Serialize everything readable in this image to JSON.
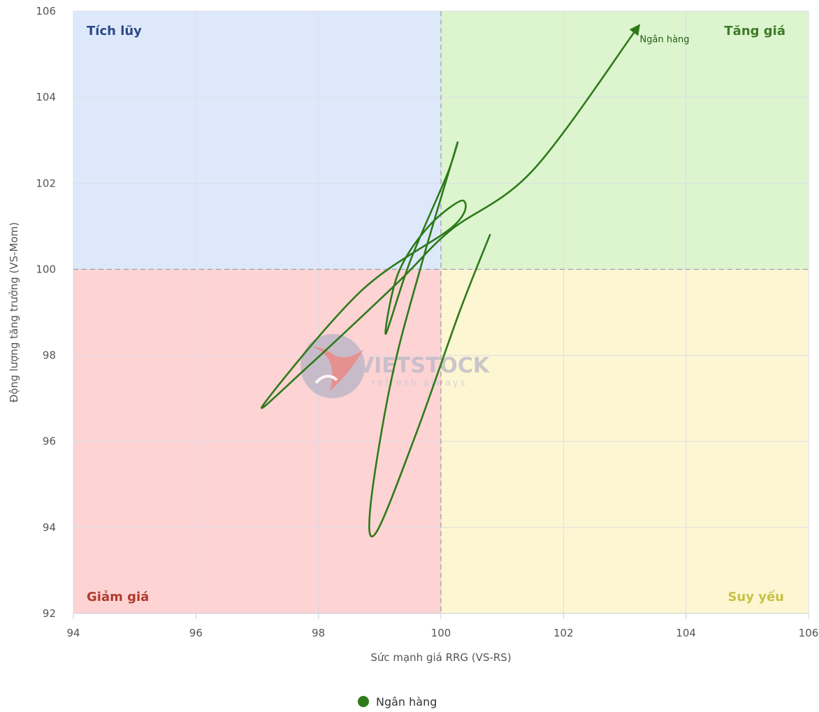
{
  "chart_data": {
    "type": "line",
    "xlabel": "Sức mạnh giá RRG (VS-RS)",
    "ylabel": "Động lượng tăng trưởng (VS-Mom)",
    "xlim": [
      94,
      106
    ],
    "ylim": [
      92,
      106
    ],
    "x_ticks": [
      "94",
      "96",
      "98",
      "100",
      "102",
      "104",
      "106"
    ],
    "y_ticks": [
      "92",
      "94",
      "96",
      "98",
      "100",
      "102",
      "104",
      "106"
    ],
    "grid": true,
    "center": {
      "x": 100,
      "y": 100
    },
    "quadrants": [
      {
        "key": "top-left",
        "label": "Tích lũy",
        "color": "#dde9fb",
        "text_color": "#2b4a86"
      },
      {
        "key": "top-right",
        "label": "Tăng giá",
        "color": "#ddf5cf",
        "text_color": "#3d7a28"
      },
      {
        "key": "bottom-left",
        "label": "Giảm giá",
        "color": "#fdd3d3",
        "text_color": "#b03a2e"
      },
      {
        "key": "bottom-right",
        "label": "Suy yếu",
        "color": "#fdf6d2",
        "text_color": "#c6c245"
      }
    ],
    "series": [
      {
        "name": "Ngân hàng",
        "color": "#2d7a1a",
        "points": [
          [
            100.8,
            100.8
          ],
          [
            100.3,
            99.0
          ],
          [
            99.6,
            96.2
          ],
          [
            98.95,
            93.9
          ],
          [
            98.85,
            94.5
          ],
          [
            99.2,
            97.5
          ],
          [
            99.7,
            100.2
          ],
          [
            100.25,
            102.85
          ],
          [
            100.1,
            102.2
          ],
          [
            99.5,
            100.2
          ],
          [
            99.1,
            98.5
          ],
          [
            99.3,
            99.9
          ],
          [
            99.8,
            101.0
          ],
          [
            100.35,
            101.6
          ],
          [
            100.2,
            101.0
          ],
          [
            98.7,
            99.5
          ],
          [
            97.1,
            96.85
          ],
          [
            97.8,
            97.7
          ],
          [
            99.3,
            99.7
          ],
          [
            100.15,
            100.9
          ],
          [
            101.5,
            102.3
          ],
          [
            103.2,
            105.6
          ]
        ]
      }
    ],
    "legend": {
      "position": "bottom-center"
    },
    "watermark": {
      "text": "VIETSTOCK",
      "subtext": "refresh always"
    }
  }
}
